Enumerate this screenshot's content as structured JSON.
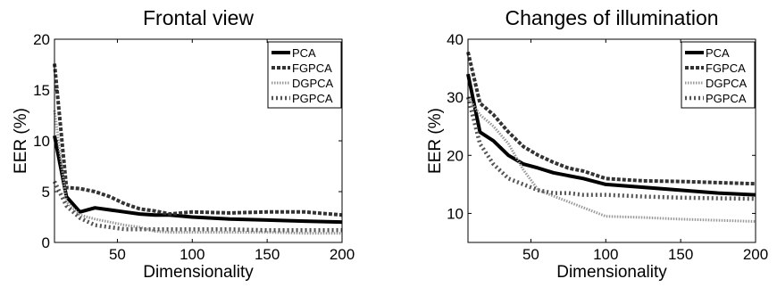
{
  "chart_data": [
    {
      "type": "line",
      "title": "Frontal view",
      "xlabel": "Dimensionality",
      "ylabel": "EER (%)",
      "xlim": [
        8,
        200
      ],
      "ylim": [
        0,
        20
      ],
      "xticks": [
        50,
        100,
        150,
        200
      ],
      "yticks": [
        0,
        5,
        10,
        15,
        20
      ],
      "grid": false,
      "legend_position": "top-right",
      "series": [
        {
          "name": "PCA",
          "style": "solid",
          "x": [
            8,
            16,
            25,
            35,
            45,
            55,
            65,
            75,
            85,
            100,
            125,
            150,
            175,
            200
          ],
          "y": [
            10.5,
            4.5,
            3.0,
            3.4,
            3.2,
            3.0,
            2.8,
            2.7,
            2.7,
            2.5,
            2.3,
            2.2,
            2.1,
            2.0
          ]
        },
        {
          "name": "FGPCA",
          "style": "dashed",
          "x": [
            8,
            16,
            25,
            35,
            45,
            55,
            65,
            75,
            85,
            100,
            125,
            150,
            175,
            200
          ],
          "y": [
            17.6,
            5.4,
            5.3,
            5.0,
            4.5,
            3.8,
            3.3,
            3.1,
            2.8,
            3.0,
            2.9,
            3.0,
            3.0,
            2.7
          ]
        },
        {
          "name": "DGPCA",
          "style": "dotted",
          "x": [
            8,
            16,
            25,
            35,
            45,
            55,
            65,
            75,
            85,
            100,
            125,
            150,
            175,
            200
          ],
          "y": [
            13.0,
            4.0,
            2.7,
            2.3,
            2.0,
            1.7,
            1.5,
            1.1,
            1.0,
            1.0,
            1.0,
            1.0,
            0.9,
            0.9
          ]
        },
        {
          "name": "PGPCA",
          "style": "dash-dot",
          "x": [
            8,
            16,
            25,
            35,
            45,
            55,
            65,
            75,
            85,
            100,
            125,
            150,
            175,
            200
          ],
          "y": [
            6.0,
            3.6,
            2.4,
            1.7,
            1.5,
            1.3,
            1.3,
            1.3,
            1.3,
            1.3,
            1.3,
            1.2,
            1.2,
            1.2
          ]
        }
      ]
    },
    {
      "type": "line",
      "title": "Changes of illumination",
      "xlabel": "Dimensionality",
      "ylabel": "EER (%)",
      "xlim": [
        8,
        200
      ],
      "ylim": [
        5,
        40
      ],
      "xticks": [
        50,
        100,
        150,
        200
      ],
      "yticks": [
        10,
        20,
        30,
        40
      ],
      "grid": false,
      "legend_position": "top-right",
      "series": [
        {
          "name": "PCA",
          "style": "solid",
          "x": [
            8,
            16,
            25,
            35,
            45,
            55,
            65,
            75,
            85,
            100,
            125,
            150,
            175,
            200
          ],
          "y": [
            34.0,
            24.0,
            22.5,
            20.0,
            18.5,
            17.8,
            17.0,
            16.5,
            16.0,
            15.0,
            14.5,
            14.0,
            13.5,
            13.2
          ]
        },
        {
          "name": "FGPCA",
          "style": "dashed",
          "x": [
            8,
            16,
            25,
            35,
            45,
            55,
            65,
            75,
            85,
            100,
            125,
            150,
            175,
            200
          ],
          "y": [
            37.8,
            29.0,
            27.0,
            24.0,
            21.5,
            20.0,
            18.8,
            17.8,
            17.3,
            16.0,
            15.6,
            15.5,
            15.3,
            15.1
          ]
        },
        {
          "name": "DGPCA",
          "style": "dotted",
          "x": [
            8,
            16,
            25,
            35,
            45,
            55,
            65,
            75,
            85,
            100,
            125,
            150,
            175,
            200
          ],
          "y": [
            30.0,
            27.0,
            25.0,
            22.0,
            17.5,
            14.0,
            13.0,
            12.0,
            11.0,
            9.5,
            9.3,
            9.0,
            8.8,
            8.6
          ]
        },
        {
          "name": "PGPCA",
          "style": "dash-dot",
          "x": [
            8,
            16,
            25,
            35,
            45,
            55,
            65,
            75,
            85,
            100,
            125,
            150,
            175,
            200
          ],
          "y": [
            30.0,
            22.0,
            18.5,
            16.0,
            15.0,
            14.0,
            13.5,
            13.5,
            13.2,
            13.2,
            12.9,
            12.7,
            12.6,
            12.5
          ]
        }
      ]
    }
  ]
}
